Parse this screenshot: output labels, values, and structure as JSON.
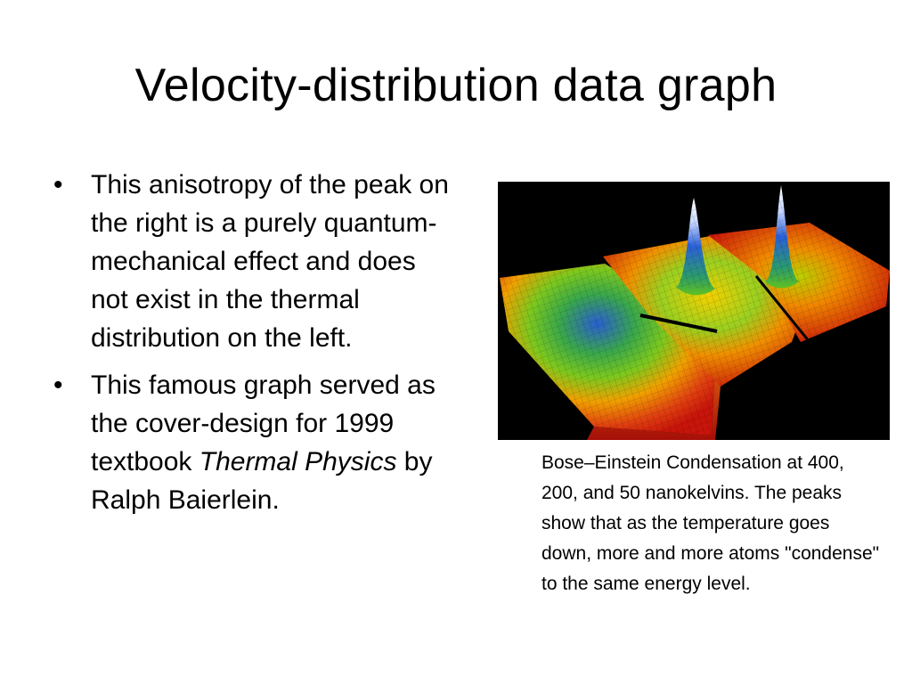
{
  "slide": {
    "title": "Velocity-distribution data graph",
    "bullet_glyph": "•",
    "bullets": [
      {
        "text": "This anisotropy of the peak on the right is a purely quantum-mechanical effect and does not exist in the thermal distribution on the left."
      },
      {
        "text_before": "This famous graph served as the cover-design for 1999 textbook ",
        "italic": "Thermal Physics",
        "text_after": " by Ralph Baierlein."
      }
    ],
    "figure": {
      "icon": "bose-einstein-condensate-3d-plot",
      "colors": {
        "background": "#000000",
        "low": "#c8140a",
        "mid": "#f0a000",
        "green": "#40c020",
        "high": "#2060d0",
        "peak": "#e8f0ff"
      }
    },
    "caption": "Bose–Einstein Condensation at 400, 200, and 50 nanokelvins. The peaks show that as the temperature goes down, more and more atoms \"condense\" to the same energy level."
  }
}
